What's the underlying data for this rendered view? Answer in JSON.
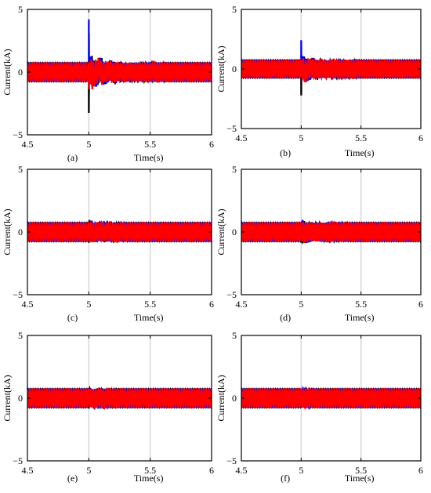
{
  "chart_data": [
    {
      "type": "line",
      "caption": "(a)",
      "ylabel": "Current(kA)",
      "xlabel": "Time(s)",
      "xlim": [
        4.5,
        6
      ],
      "ylim": [
        -5,
        5
      ],
      "xticks": [
        "4.5",
        "5",
        "5.5",
        "6"
      ],
      "yticks": [
        "5",
        "0",
        "-5"
      ],
      "grid_x": [
        5,
        5.5
      ],
      "fault_time": 5,
      "amplitude": 0.7,
      "transient": {
        "peak": 4.3,
        "trough": -3.5,
        "noise": 0.6,
        "duration": 0.4
      },
      "series": [
        {
          "color": "#000000"
        },
        {
          "color": "#0000ff"
        },
        {
          "color": "#ff0000"
        }
      ]
    },
    {
      "type": "line",
      "caption": "(b)",
      "ylabel": "Current(kA)",
      "xlabel": "Time(s)",
      "xlim": [
        4.5,
        6
      ],
      "ylim": [
        -5,
        5
      ],
      "xticks": [
        "4.5",
        "5",
        "5.5",
        "6"
      ],
      "yticks": [
        "5",
        "0",
        "-5"
      ],
      "grid_x": [
        5,
        5.5
      ],
      "fault_time": 5,
      "amplitude": 0.7,
      "transient": {
        "peak": 2.6,
        "trough": -2.3,
        "noise": 0.45,
        "duration": 0.3
      },
      "series": [
        {
          "color": "#000000"
        },
        {
          "color": "#0000ff"
        },
        {
          "color": "#ff0000"
        }
      ]
    },
    {
      "type": "line",
      "caption": "(c)",
      "ylabel": "Current(kA)",
      "xlabel": "Time(s)",
      "xlim": [
        4.5,
        6
      ],
      "ylim": [
        -5,
        5
      ],
      "xticks": [
        "4.5",
        "5",
        "5.5",
        "6"
      ],
      "yticks": [
        "5",
        "0",
        "-5"
      ],
      "grid_x": [
        5,
        5.5
      ],
      "fault_time": 5,
      "amplitude": 0.7,
      "transient": {
        "peak": 1.0,
        "trough": -1.0,
        "noise": 0.25,
        "duration": 0.2
      },
      "series": [
        {
          "color": "#000000"
        },
        {
          "color": "#0000ff"
        },
        {
          "color": "#ff0000"
        }
      ]
    },
    {
      "type": "line",
      "caption": "(d)",
      "ylabel": "Current(kA)",
      "xlabel": "Time(s)",
      "xlim": [
        4.5,
        6
      ],
      "ylim": [
        -5,
        5
      ],
      "xticks": [
        "4.5",
        "5",
        "5.5",
        "6"
      ],
      "yticks": [
        "5",
        "0",
        "-5"
      ],
      "grid_x": [
        5,
        5.5
      ],
      "fault_time": 5,
      "amplitude": 0.7,
      "transient": {
        "peak": 1.0,
        "trough": -1.0,
        "noise": 0.22,
        "duration": 0.25
      },
      "series": [
        {
          "color": "#000000"
        },
        {
          "color": "#0000ff"
        },
        {
          "color": "#ff0000"
        }
      ]
    },
    {
      "type": "line",
      "caption": "(e)",
      "ylabel": "Current(kA)",
      "xlabel": "Time(s)",
      "xlim": [
        4.5,
        6
      ],
      "ylim": [
        -5,
        5
      ],
      "xticks": [
        "4.5",
        "5",
        "5.5",
        "6"
      ],
      "yticks": [
        "5",
        "0",
        "-5"
      ],
      "grid_x": [
        5,
        5.5
      ],
      "fault_time": 5,
      "amplitude": 0.7,
      "transient": {
        "peak": 0.9,
        "trough": -0.9,
        "noise": 0.12,
        "duration": 0.15
      },
      "series": [
        {
          "color": "#000000"
        },
        {
          "color": "#0000ff"
        },
        {
          "color": "#ff0000"
        }
      ]
    },
    {
      "type": "line",
      "caption": "(f)",
      "ylabel": "Current(kA)",
      "xlabel": "Time(s)",
      "xlim": [
        4.5,
        6
      ],
      "ylim": [
        -5,
        5
      ],
      "xticks": [
        "4.5",
        "5",
        "5.5",
        "6"
      ],
      "yticks": [
        "5",
        "0",
        "-5"
      ],
      "grid_x": [
        5,
        5.5
      ],
      "fault_time": 5,
      "amplitude": 0.7,
      "transient": {
        "peak": 0.8,
        "trough": -0.8,
        "noise": 0.04,
        "duration": 0.1
      },
      "series": [
        {
          "color": "#000000"
        },
        {
          "color": "#0000ff"
        },
        {
          "color": "#ff0000"
        }
      ]
    }
  ]
}
